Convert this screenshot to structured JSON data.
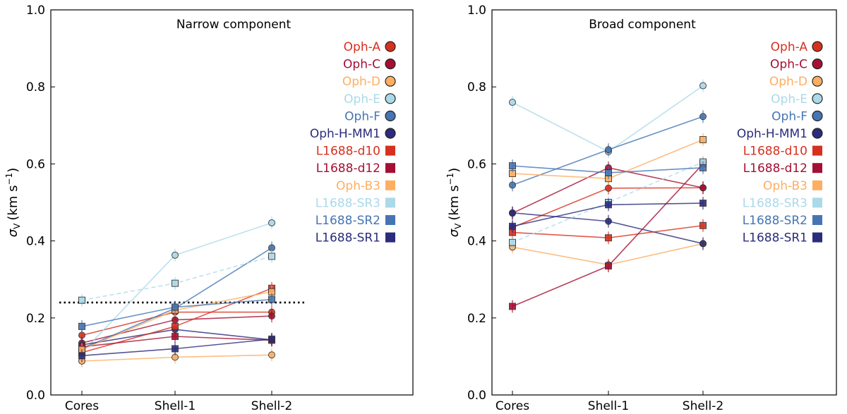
{
  "series_styles": {
    "Oph-A": {
      "color": "#d7301f",
      "marker": "circle"
    },
    "Oph-C": {
      "color": "#a50f33",
      "marker": "circle"
    },
    "Oph-D": {
      "color": "#fdae61",
      "marker": "circle"
    },
    "Oph-E": {
      "color": "#abd9e9",
      "marker": "circle"
    },
    "Oph-F": {
      "color": "#4575b4",
      "marker": "circle"
    },
    "Oph-H-MM1": {
      "color": "#2b2c7c",
      "marker": "circle"
    },
    "L1688-d10": {
      "color": "#d7301f",
      "marker": "square"
    },
    "L1688-d12": {
      "color": "#a50f33",
      "marker": "square"
    },
    "Oph-B3": {
      "color": "#fdae61",
      "marker": "square"
    },
    "L1688-SR3": {
      "color": "#abd9e9",
      "marker": "square"
    },
    "L1688-SR2": {
      "color": "#4575b4",
      "marker": "square"
    },
    "L1688-SR1": {
      "color": "#2b2c7c",
      "marker": "square"
    }
  },
  "chart_data": [
    {
      "type": "line",
      "title": "Narrow component",
      "ylabel_main": "σ",
      "ylabel_sub": "V",
      "ylabel_units": "(km s",
      "ylabel_exp": "−1",
      "ylabel_close": ")",
      "categories": [
        "Cores",
        "Shell-1",
        "Shell-2"
      ],
      "ylim": [
        0.0,
        1.0
      ],
      "yticks": [
        "0.0",
        "0.2",
        "0.4",
        "0.6",
        "0.8",
        "1.0"
      ],
      "ytick_values": [
        0.0,
        0.2,
        0.4,
        0.6,
        0.8,
        1.0
      ],
      "threshold_line": 0.24,
      "legend_position": "right",
      "series": [
        {
          "name": "Oph-A",
          "values": [
            0.155,
            0.215,
            0.215
          ],
          "dashed": false
        },
        {
          "name": "Oph-C",
          "values": [
            0.135,
            0.195,
            0.205
          ],
          "dashed": false
        },
        {
          "name": "Oph-D",
          "values": [
            0.088,
            0.098,
            0.104
          ],
          "dashed": false
        },
        {
          "name": "Oph-E",
          "values": [
            0.11,
            0.363,
            0.447
          ],
          "dashed": false
        },
        {
          "name": "Oph-F",
          "values": [
            0.12,
            0.225,
            0.382
          ],
          "dashed": false
        },
        {
          "name": "Oph-H-MM1",
          "values": [
            0.13,
            0.17,
            0.143
          ],
          "dashed": false
        },
        {
          "name": "L1688-d10",
          "values": [
            0.11,
            0.178,
            0.277
          ],
          "dashed": false
        },
        {
          "name": "L1688-d12",
          "values": [
            0.125,
            0.152,
            0.142
          ],
          "dashed": false
        },
        {
          "name": "Oph-B3",
          "values": [
            0.118,
            0.22,
            0.268
          ],
          "dashed": false
        },
        {
          "name": "L1688-SR3",
          "values": [
            0.246,
            0.29,
            0.36
          ],
          "dashed": true
        },
        {
          "name": "L1688-SR2",
          "values": [
            0.178,
            0.228,
            0.248
          ],
          "dashed": false
        },
        {
          "name": "L1688-SR1",
          "values": [
            0.102,
            0.12,
            0.145
          ],
          "dashed": false
        }
      ]
    },
    {
      "type": "line",
      "title": "Broad component",
      "ylabel_main": "σ",
      "ylabel_sub": "V",
      "ylabel_units": "(km s",
      "ylabel_exp": "−1",
      "ylabel_close": ")",
      "categories": [
        "Cores",
        "Shell-1",
        "Shell-2"
      ],
      "ylim": [
        0.0,
        1.0
      ],
      "yticks": [
        "0.0",
        "0.2",
        "0.4",
        "0.6",
        "0.8",
        "1.0"
      ],
      "ytick_values": [
        0.0,
        0.2,
        0.4,
        0.6,
        0.8,
        1.0
      ],
      "legend_position": "right",
      "series": [
        {
          "name": "Oph-A",
          "values": [
            0.435,
            0.537,
            0.538
          ],
          "dashed": false
        },
        {
          "name": "Oph-C",
          "values": [
            0.472,
            0.59,
            0.538
          ],
          "dashed": false
        },
        {
          "name": "Oph-D",
          "values": [
            0.384,
            0.338,
            0.393
          ],
          "dashed": false
        },
        {
          "name": "Oph-E",
          "values": [
            0.76,
            0.632,
            0.803
          ],
          "dashed": false
        },
        {
          "name": "Oph-F",
          "values": [
            0.545,
            0.637,
            0.723
          ],
          "dashed": false
        },
        {
          "name": "Oph-H-MM1",
          "values": [
            0.473,
            0.451,
            0.393
          ],
          "dashed": false
        },
        {
          "name": "L1688-d10",
          "values": [
            0.422,
            0.408,
            0.44
          ],
          "dashed": false
        },
        {
          "name": "L1688-d12",
          "values": [
            0.23,
            0.335,
            0.6
          ],
          "dashed": false
        },
        {
          "name": "Oph-B3",
          "values": [
            0.575,
            0.562,
            0.663
          ],
          "dashed": false
        },
        {
          "name": "L1688-SR3",
          "values": [
            0.396,
            0.5,
            0.605
          ],
          "dashed": true
        },
        {
          "name": "L1688-SR2",
          "values": [
            0.595,
            0.577,
            0.59
          ],
          "dashed": false
        },
        {
          "name": "L1688-SR1",
          "values": [
            0.438,
            0.494,
            0.498
          ],
          "dashed": false
        }
      ]
    }
  ]
}
